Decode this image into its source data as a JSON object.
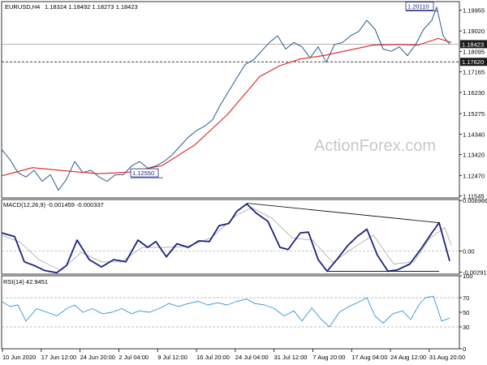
{
  "chart_data": [
    {
      "type": "line",
      "panel": "price",
      "title": "EURUSD,H4",
      "ohlc": "1.18324 1.18492 1.18273 1.18423",
      "ylim": [
        1.1145,
        1.2035
      ],
      "y_ticks": [
        "1.19955",
        "1.19020",
        "1.18095",
        "1.17165",
        "1.16230",
        "1.15275",
        "1.14340",
        "1.13420",
        "1.12470",
        "1.11545"
      ],
      "price_tags": [
        {
          "label": "1.18423",
          "value": 1.18423,
          "style": "dark"
        },
        {
          "label": "1.17620",
          "value": 1.1762,
          "style": "dark"
        }
      ],
      "reference_lines": [
        {
          "value": 1.18423,
          "style": "solid-grey"
        },
        {
          "value": 1.1762,
          "style": "dashed"
        }
      ],
      "level_annotations": [
        {
          "label": "1.20110",
          "value": 1.2011,
          "at_x": 536
        },
        {
          "label": "1.12550",
          "value": 1.1255,
          "at_x": 197
        }
      ],
      "series": [
        {
          "name": "",
          "color": "#2a5b8a",
          "x": [
            2,
            12,
            22,
            32,
            42,
            52,
            62,
            72,
            82,
            92,
            102,
            112,
            122,
            132,
            142,
            152,
            162,
            172,
            182,
            192,
            202,
            212,
            222,
            232,
            242,
            252,
            262,
            272,
            282,
            292,
            302,
            312,
            322,
            332,
            342,
            352,
            362,
            372,
            382,
            392,
            402,
            412,
            422,
            432,
            442,
            452,
            462,
            472,
            482,
            492,
            502,
            512,
            522,
            532,
            538,
            546,
            554
          ],
          "values": [
            1.1365,
            1.132,
            1.126,
            1.124,
            1.127,
            1.122,
            1.125,
            1.118,
            1.123,
            1.131,
            1.126,
            1.127,
            1.124,
            1.122,
            1.125,
            1.125,
            1.129,
            1.131,
            1.128,
            1.129,
            1.131,
            1.134,
            1.138,
            1.142,
            1.145,
            1.147,
            1.15,
            1.157,
            1.163,
            1.169,
            1.175,
            1.177,
            1.181,
            1.185,
            1.188,
            1.182,
            1.185,
            1.183,
            1.178,
            1.183,
            1.176,
            1.184,
            1.185,
            1.188,
            1.19,
            1.195,
            1.191,
            1.182,
            1.181,
            1.183,
            1.179,
            1.184,
            1.191,
            1.195,
            1.201,
            1.188,
            1.184
          ]
        },
        {
          "name": "",
          "color": "#dd2222",
          "x": [
            2,
            40,
            80,
            120,
            160,
            200,
            240,
            280,
            320,
            345,
            370,
            400,
            430,
            460,
            490,
            515,
            540,
            556
          ],
          "values": [
            1.1245,
            1.1282,
            1.1268,
            1.1255,
            1.1262,
            1.1292,
            1.1385,
            1.1522,
            1.1695,
            1.1745,
            1.1775,
            1.1791,
            1.1815,
            1.1838,
            1.184,
            1.1838,
            1.1868,
            1.185
          ]
        }
      ]
    },
    {
      "type": "line",
      "panel": "macd",
      "title": "MACD(12,26,9) -0.001459 -0.000337",
      "ylim": [
        -0.0032,
        0.0071
      ],
      "y_ticks": [
        "0.006966",
        "0.00",
        "-0.002913"
      ],
      "trendlines": [
        {
          "x": [
            304,
            541
          ],
          "values": [
            0.0066,
            0.0039
          ]
        },
        {
          "x": [
            403,
            541
          ],
          "values": [
            -0.0028,
            -0.0028
          ]
        }
      ],
      "series": [
        {
          "name": "",
          "color": "#1a237e",
          "x": [
            2,
            18,
            30,
            42,
            55,
            70,
            82,
            95,
            110,
            125,
            140,
            155,
            170,
            182,
            192,
            205,
            218,
            232,
            245,
            258,
            270,
            282,
            292,
            304,
            316,
            330,
            345,
            355,
            370,
            380,
            392,
            403,
            415,
            428,
            440,
            452,
            465,
            478,
            490,
            505,
            520,
            532,
            541,
            554
          ],
          "values": [
            0.0025,
            0.002,
            -0.0015,
            -0.002,
            -0.0027,
            -0.003,
            -0.002,
            0.0015,
            -0.0012,
            -0.0022,
            -0.0012,
            -0.0015,
            0.0015,
            0.0005,
            0.0013,
            -0.0008,
            0.001,
            0.0005,
            0.0014,
            0.0013,
            0.0035,
            0.0038,
            0.0055,
            0.0065,
            0.0052,
            0.0041,
            0.0005,
            0.0002,
            0.0025,
            0.0026,
            -0.0012,
            -0.0028,
            -0.0012,
            0.0007,
            0.002,
            0.003,
            -0.0006,
            -0.0028,
            -0.0026,
            -0.0018,
            0.0005,
            0.0025,
            0.0039,
            -0.0014
          ]
        },
        {
          "name": "",
          "color": "#b0b0b0",
          "x": [
            2,
            25,
            48,
            75,
            100,
            125,
            150,
            175,
            200,
            230,
            260,
            290,
            310,
            335,
            360,
            385,
            410,
            435,
            460,
            485,
            510,
            530,
            548,
            556
          ],
          "values": [
            0.0022,
            0.0012,
            -0.0012,
            -0.0027,
            -0.0002,
            -0.0015,
            -0.0015,
            0.0005,
            0.0005,
            0.0006,
            0.0018,
            0.0048,
            0.006,
            0.0045,
            0.0018,
            0.0015,
            -0.0016,
            0.0004,
            0.0022,
            -0.0018,
            -0.0015,
            0.0018,
            0.0032,
            0.0008
          ]
        }
      ]
    },
    {
      "type": "line",
      "panel": "rsi",
      "title": "RSI(14) 42.9451",
      "ylim": [
        0,
        100
      ],
      "y_ticks": [
        "100",
        "70",
        "50",
        "30",
        "0"
      ],
      "reference_lines": [
        70,
        30
      ],
      "series": [
        {
          "name": "",
          "color": "#2f97d5",
          "x": [
            2,
            12,
            22,
            32,
            45,
            58,
            70,
            82,
            92,
            102,
            114,
            126,
            138,
            150,
            162,
            172,
            184,
            196,
            208,
            220,
            232,
            244,
            256,
            268,
            280,
            292,
            304,
            314,
            326,
            338,
            350,
            362,
            372,
            384,
            396,
            406,
            418,
            430,
            442,
            452,
            462,
            472,
            484,
            496,
            506,
            516,
            524,
            534,
            544,
            554
          ],
          "values": [
            65,
            58,
            60,
            38,
            55,
            50,
            45,
            55,
            60,
            50,
            55,
            48,
            50,
            55,
            48,
            52,
            50,
            55,
            62,
            58,
            62,
            65,
            60,
            63,
            60,
            65,
            68,
            62,
            60,
            55,
            45,
            52,
            38,
            56,
            40,
            30,
            50,
            58,
            64,
            70,
            45,
            35,
            48,
            52,
            40,
            60,
            70,
            72,
            38,
            42
          ]
        }
      ]
    }
  ],
  "x_axis_labels": [
    "10 Jun 2020",
    "17 Jun 12:00",
    "24 Jun 20:00",
    "2 Jul 04:00",
    "9 Jul 12:00",
    "16 Jul 20:00",
    "24 Jul 04:00",
    "31 Jul 12:00",
    "7 Aug 20:00",
    "17 Aug 04:00",
    "24 Aug 12:00",
    "31 Aug 20:00"
  ],
  "watermark": "ActionForex.com"
}
